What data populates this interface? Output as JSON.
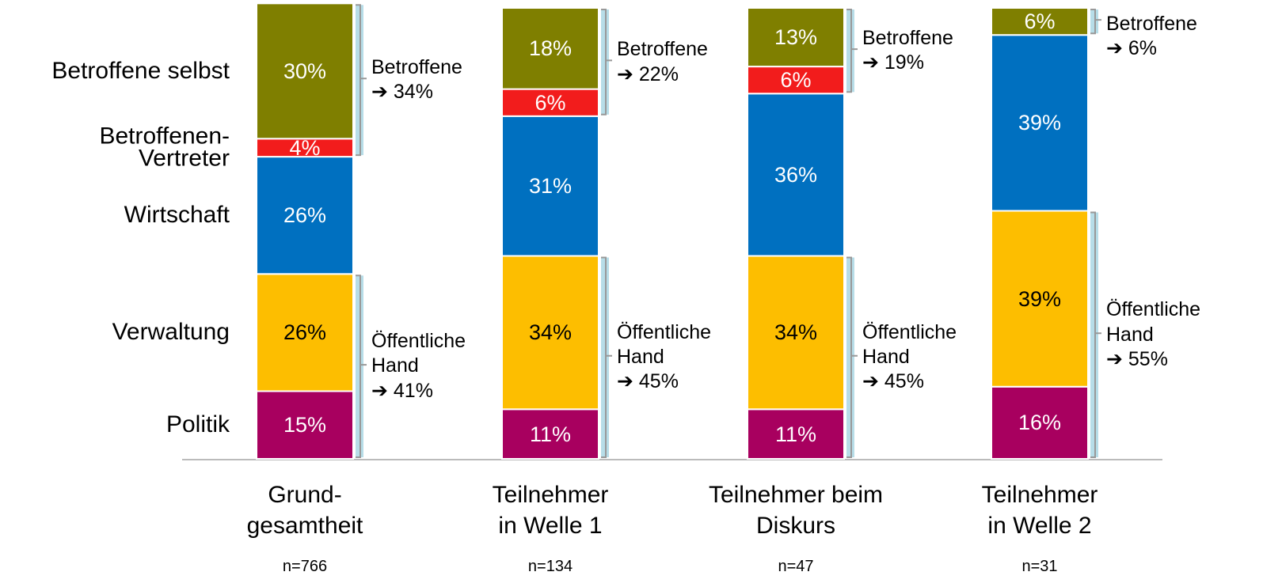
{
  "chart_data": {
    "type": "bar",
    "stacked": true,
    "categories": [
      "Grund-\ngesamtheit",
      "Teilnehmer\nin Welle 1",
      "Teilnehmer beim\nDiskurs",
      "Teilnehmer\nin Welle 2"
    ],
    "n": [
      "n=766",
      "n=134",
      "n=47",
      "n=31"
    ],
    "ylim": [
      0,
      100
    ],
    "series": [
      {
        "name": "Politik",
        "color": "#a8005f",
        "label_color": "#ffffff",
        "values": [
          15,
          11,
          11,
          16
        ],
        "value_labels": [
          "15%",
          "11%",
          "11%",
          "16%"
        ]
      },
      {
        "name": "Verwaltung",
        "color": "#fdbe00",
        "label_color": "#000000",
        "values": [
          26,
          34,
          34,
          39
        ],
        "value_labels": [
          "26%",
          "34%",
          "34%",
          "39%"
        ]
      },
      {
        "name": "Wirtschaft",
        "color": "#0070c0",
        "label_color": "#ffffff",
        "values": [
          26,
          31,
          36,
          39
        ],
        "value_labels": [
          "26%",
          "31%",
          "36%",
          "39%"
        ]
      },
      {
        "name": "Betroffenen-\nVertreter",
        "color": "#f21c1c",
        "label_color": "#ffffff",
        "values": [
          4,
          6,
          6,
          null
        ],
        "value_labels": [
          "4%",
          "6%",
          "6%",
          null
        ]
      },
      {
        "name": "Betroffene selbst",
        "color": "#7f7f00",
        "label_color": "#ffffff",
        "values": [
          30,
          18,
          13,
          6
        ],
        "value_labels": [
          "30%",
          "18%",
          "13%",
          "6%"
        ]
      }
    ],
    "groups": [
      {
        "label": "Betroffene",
        "values": [
          34,
          22,
          19,
          6
        ],
        "value_labels": [
          "➔ 34%",
          "➔ 22%",
          "➔ 19%",
          "➔ 6%"
        ]
      },
      {
        "label": "Öffentliche\nHand",
        "values": [
          41,
          45,
          45,
          55
        ],
        "value_labels": [
          "➔ 41%",
          "➔ 45%",
          "➔ 45%",
          "➔ 55%"
        ]
      }
    ]
  }
}
